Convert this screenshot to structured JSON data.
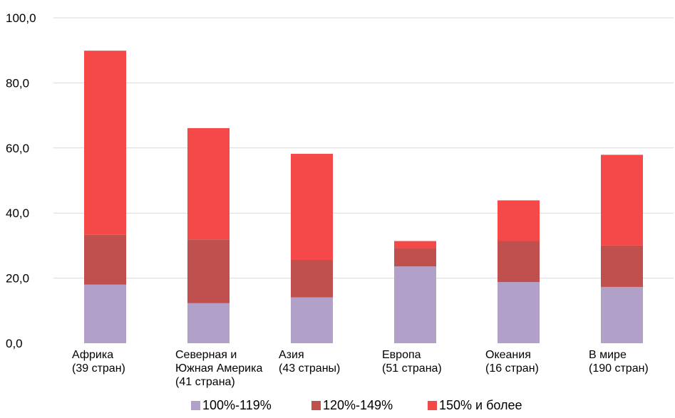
{
  "chart_data": {
    "type": "bar",
    "stacked": true,
    "ylim": [
      0,
      100
    ],
    "yticks": [
      "0,0",
      "20,0",
      "40,0",
      "60,0",
      "80,0",
      "100,0"
    ],
    "grid": true,
    "legend_position": "bottom",
    "categories": [
      [
        "Африка",
        "(39 стран)"
      ],
      [
        "Северная и",
        "Южная Америка",
        "(41 страна)"
      ],
      [
        "Азия",
        "(43 страны)"
      ],
      [
        "Европа",
        "(51 страна)"
      ],
      [
        "Океания",
        "(16 стран)"
      ],
      [
        "В мире",
        "(190 стран)"
      ]
    ],
    "series": [
      {
        "name": "100%-119%",
        "color": "#b1a0c7",
        "values": [
          18.0,
          12.3,
          14.1,
          23.6,
          18.8,
          17.3
        ]
      },
      {
        "name": "120%-149%",
        "color": "#c0504d",
        "values": [
          15.3,
          19.6,
          11.5,
          5.6,
          12.6,
          12.7
        ]
      },
      {
        "name": "150% и более",
        "color": "#f54848",
        "values": [
          56.6,
          34.2,
          32.6,
          2.2,
          12.5,
          27.9
        ]
      }
    ]
  }
}
